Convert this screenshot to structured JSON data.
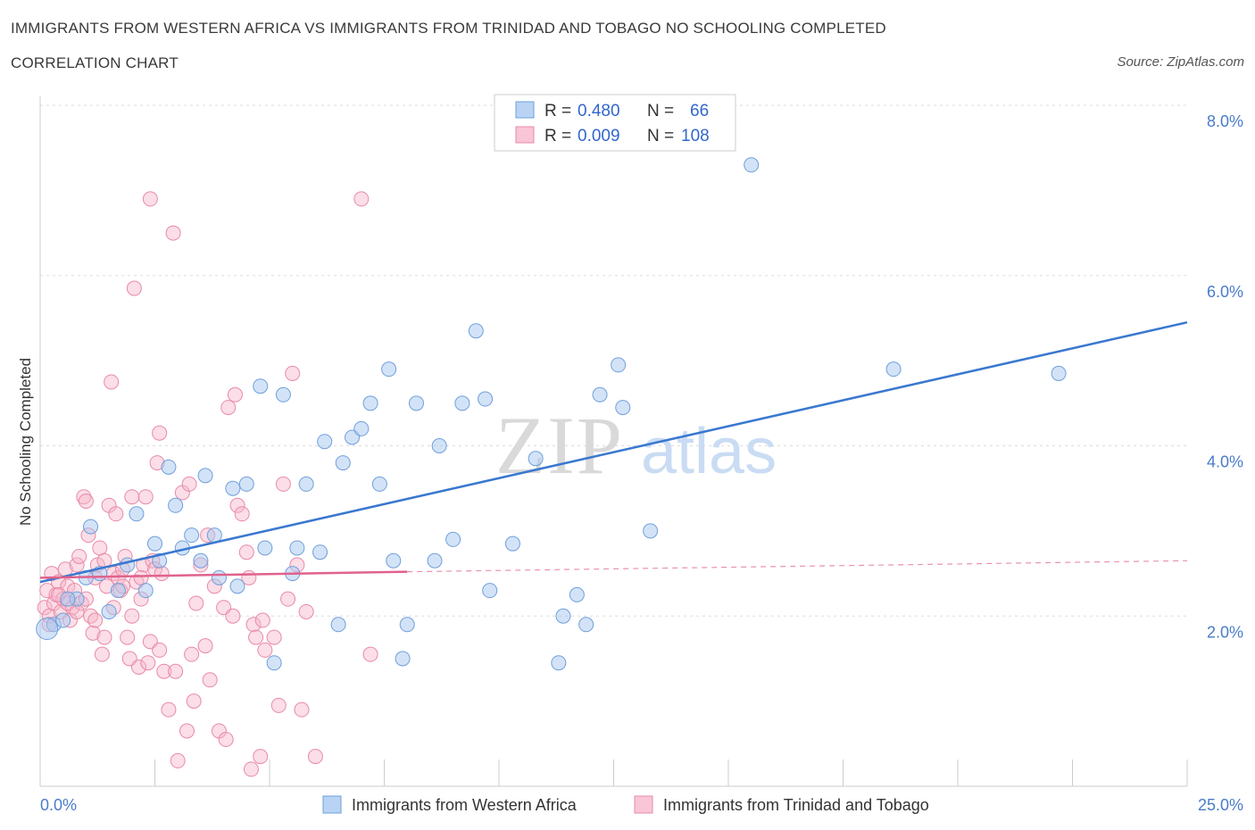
{
  "header": {
    "title": "IMMIGRANTS FROM WESTERN AFRICA VS IMMIGRANTS FROM TRINIDAD AND TOBAGO NO SCHOOLING COMPLETED",
    "subtitle": "CORRELATION CHART",
    "source": "Source: ZipAtlas.com"
  },
  "legend_top": {
    "blue": {
      "r_label": "R = ",
      "r_value": "0.480",
      "n_label": "N = ",
      "n_value": "66"
    },
    "pink": {
      "r_label": "R = ",
      "r_value": "0.009",
      "n_label": "N = ",
      "n_value": "108"
    }
  },
  "watermark": {
    "zip": "ZIP",
    "atlas": "atlas"
  },
  "colors": {
    "blue_fill": "#a8c8f0",
    "blue_stroke": "#6f9fdc",
    "blue_line": "#3a78d0",
    "pink_fill": "#f6b5c9",
    "pink_stroke": "#e98aa8",
    "pink_line": "#e0628d",
    "grid": "#dddddd",
    "axis_text": "#4a7cc9"
  },
  "chart_data": {
    "type": "scatter",
    "title": "IMMIGRANTS FROM WESTERN AFRICA VS IMMIGRANTS FROM TRINIDAD AND TOBAGO NO SCHOOLING COMPLETED",
    "xlabel": "",
    "ylabel": "No Schooling Completed",
    "xlim": [
      0,
      25
    ],
    "ylim": [
      0,
      8
    ],
    "x_tick_labels": [
      "0.0%",
      "25.0%"
    ],
    "y_ticks": [
      2,
      4,
      6,
      8
    ],
    "y_tick_labels": [
      "2.0%",
      "4.0%",
      "6.0%",
      "8.0%"
    ],
    "grid": true,
    "legend_placement": "top-center",
    "series": [
      {
        "name": "Immigrants from Western Africa",
        "color": "#a8c8f0",
        "R": 0.48,
        "N": 66,
        "trend": {
          "x": [
            0,
            25
          ],
          "y": [
            2.4,
            5.45
          ]
        },
        "points": [
          [
            0.3,
            1.9
          ],
          [
            0.5,
            1.95
          ],
          [
            0.8,
            2.2
          ],
          [
            1.1,
            3.05
          ],
          [
            1.3,
            2.5
          ],
          [
            1.5,
            2.05
          ],
          [
            1.7,
            2.3
          ],
          [
            1.9,
            2.6
          ],
          [
            2.1,
            3.2
          ],
          [
            2.3,
            2.3
          ],
          [
            2.5,
            2.85
          ],
          [
            2.6,
            2.65
          ],
          [
            2.8,
            3.75
          ],
          [
            2.95,
            3.3
          ],
          [
            3.1,
            2.8
          ],
          [
            3.3,
            2.95
          ],
          [
            3.5,
            2.65
          ],
          [
            3.6,
            3.65
          ],
          [
            3.8,
            2.95
          ],
          [
            3.9,
            2.45
          ],
          [
            4.2,
            3.5
          ],
          [
            4.3,
            2.35
          ],
          [
            4.5,
            3.55
          ],
          [
            4.8,
            4.7
          ],
          [
            4.9,
            2.8
          ],
          [
            5.1,
            1.45
          ],
          [
            5.3,
            4.6
          ],
          [
            5.5,
            2.5
          ],
          [
            5.6,
            2.8
          ],
          [
            5.8,
            3.55
          ],
          [
            6.1,
            2.75
          ],
          [
            6.2,
            4.05
          ],
          [
            6.5,
            1.9
          ],
          [
            6.6,
            3.8
          ],
          [
            6.8,
            4.1
          ],
          [
            7.0,
            4.2
          ],
          [
            7.2,
            4.5
          ],
          [
            7.4,
            3.55
          ],
          [
            7.6,
            4.9
          ],
          [
            7.7,
            2.65
          ],
          [
            7.9,
            1.5
          ],
          [
            8.0,
            1.9
          ],
          [
            8.2,
            4.5
          ],
          [
            8.6,
            2.65
          ],
          [
            8.7,
            4.0
          ],
          [
            9.0,
            2.9
          ],
          [
            9.2,
            4.5
          ],
          [
            9.5,
            5.35
          ],
          [
            9.7,
            4.55
          ],
          [
            9.8,
            2.3
          ],
          [
            10.3,
            2.85
          ],
          [
            10.8,
            3.85
          ],
          [
            11.3,
            1.45
          ],
          [
            11.4,
            2.0
          ],
          [
            11.7,
            2.25
          ],
          [
            11.9,
            1.9
          ],
          [
            12.2,
            4.6
          ],
          [
            12.6,
            4.95
          ],
          [
            12.7,
            4.45
          ],
          [
            13.3,
            3.0
          ],
          [
            15.5,
            7.3
          ],
          [
            18.6,
            4.9
          ],
          [
            22.2,
            4.85
          ],
          [
            0.15,
            1.85
          ],
          [
            0.6,
            2.2
          ],
          [
            1.0,
            2.45
          ]
        ]
      },
      {
        "name": "Immigrants from Trinidad and Tobago",
        "color": "#f6b5c9",
        "R": 0.009,
        "N": 108,
        "trend": {
          "x": [
            0,
            8
          ],
          "y": [
            2.45,
            2.52
          ]
        },
        "trend_dashed": {
          "x": [
            8,
            25
          ],
          "y": [
            2.52,
            2.65
          ]
        },
        "points": [
          [
            0.1,
            2.1
          ],
          [
            0.15,
            2.3
          ],
          [
            0.2,
            2.0
          ],
          [
            0.25,
            2.5
          ],
          [
            0.3,
            2.15
          ],
          [
            0.35,
            2.25
          ],
          [
            0.4,
            2.4
          ],
          [
            0.45,
            2.05
          ],
          [
            0.5,
            2.2
          ],
          [
            0.55,
            2.55
          ],
          [
            0.6,
            2.35
          ],
          [
            0.65,
            1.95
          ],
          [
            0.7,
            2.1
          ],
          [
            0.75,
            2.3
          ],
          [
            0.8,
            2.6
          ],
          [
            0.85,
            2.7
          ],
          [
            0.9,
            2.15
          ],
          [
            0.95,
            3.4
          ],
          [
            1.0,
            3.35
          ],
          [
            1.05,
            2.95
          ],
          [
            1.1,
            2.0
          ],
          [
            1.15,
            1.8
          ],
          [
            1.2,
            2.45
          ],
          [
            1.25,
            2.6
          ],
          [
            1.3,
            2.8
          ],
          [
            1.35,
            1.55
          ],
          [
            1.4,
            1.75
          ],
          [
            1.45,
            2.35
          ],
          [
            1.5,
            3.3
          ],
          [
            1.55,
            4.75
          ],
          [
            1.6,
            2.5
          ],
          [
            1.65,
            3.2
          ],
          [
            1.7,
            2.45
          ],
          [
            1.75,
            2.3
          ],
          [
            1.8,
            2.55
          ],
          [
            1.85,
            2.7
          ],
          [
            1.9,
            1.75
          ],
          [
            1.95,
            1.5
          ],
          [
            2.0,
            3.4
          ],
          [
            2.05,
            5.85
          ],
          [
            2.1,
            2.4
          ],
          [
            2.15,
            1.4
          ],
          [
            2.2,
            2.2
          ],
          [
            2.25,
            2.6
          ],
          [
            2.3,
            3.4
          ],
          [
            2.35,
            1.45
          ],
          [
            2.4,
            6.9
          ],
          [
            2.45,
            2.65
          ],
          [
            2.5,
            2.55
          ],
          [
            2.55,
            3.8
          ],
          [
            2.6,
            4.15
          ],
          [
            2.65,
            2.5
          ],
          [
            2.7,
            1.35
          ],
          [
            2.8,
            0.9
          ],
          [
            2.9,
            6.5
          ],
          [
            2.95,
            1.35
          ],
          [
            3.0,
            0.3
          ],
          [
            3.1,
            3.45
          ],
          [
            3.2,
            0.65
          ],
          [
            3.25,
            3.55
          ],
          [
            3.3,
            1.55
          ],
          [
            3.35,
            1.0
          ],
          [
            3.4,
            2.15
          ],
          [
            3.5,
            2.6
          ],
          [
            3.6,
            1.65
          ],
          [
            3.65,
            2.95
          ],
          [
            3.7,
            1.25
          ],
          [
            3.8,
            2.35
          ],
          [
            3.9,
            0.65
          ],
          [
            4.0,
            2.1
          ],
          [
            4.05,
            0.55
          ],
          [
            4.1,
            4.45
          ],
          [
            4.2,
            2.0
          ],
          [
            4.25,
            4.6
          ],
          [
            4.3,
            3.3
          ],
          [
            4.4,
            3.2
          ],
          [
            4.5,
            2.75
          ],
          [
            4.55,
            2.45
          ],
          [
            4.6,
            0.2
          ],
          [
            4.65,
            1.9
          ],
          [
            4.7,
            1.75
          ],
          [
            4.8,
            0.35
          ],
          [
            4.85,
            1.95
          ],
          [
            4.9,
            1.6
          ],
          [
            5.1,
            1.75
          ],
          [
            5.2,
            0.95
          ],
          [
            5.3,
            3.55
          ],
          [
            5.4,
            2.2
          ],
          [
            5.5,
            4.85
          ],
          [
            5.6,
            2.6
          ],
          [
            5.7,
            0.9
          ],
          [
            5.8,
            2.05
          ],
          [
            6.0,
            0.35
          ],
          [
            7.0,
            6.9
          ],
          [
            7.2,
            1.55
          ],
          [
            0.2,
            1.9
          ],
          [
            0.4,
            2.25
          ],
          [
            0.6,
            2.15
          ],
          [
            0.8,
            2.05
          ],
          [
            1.0,
            2.2
          ],
          [
            1.2,
            1.95
          ],
          [
            1.4,
            2.65
          ],
          [
            1.6,
            2.1
          ],
          [
            1.8,
            2.35
          ],
          [
            2.0,
            2.0
          ],
          [
            2.2,
            2.45
          ],
          [
            2.4,
            1.7
          ],
          [
            2.6,
            1.6
          ]
        ]
      }
    ]
  },
  "bottom_legend": {
    "blue_label": "Immigrants from Western Africa",
    "pink_label": "Immigrants from Trinidad and Tobago"
  }
}
